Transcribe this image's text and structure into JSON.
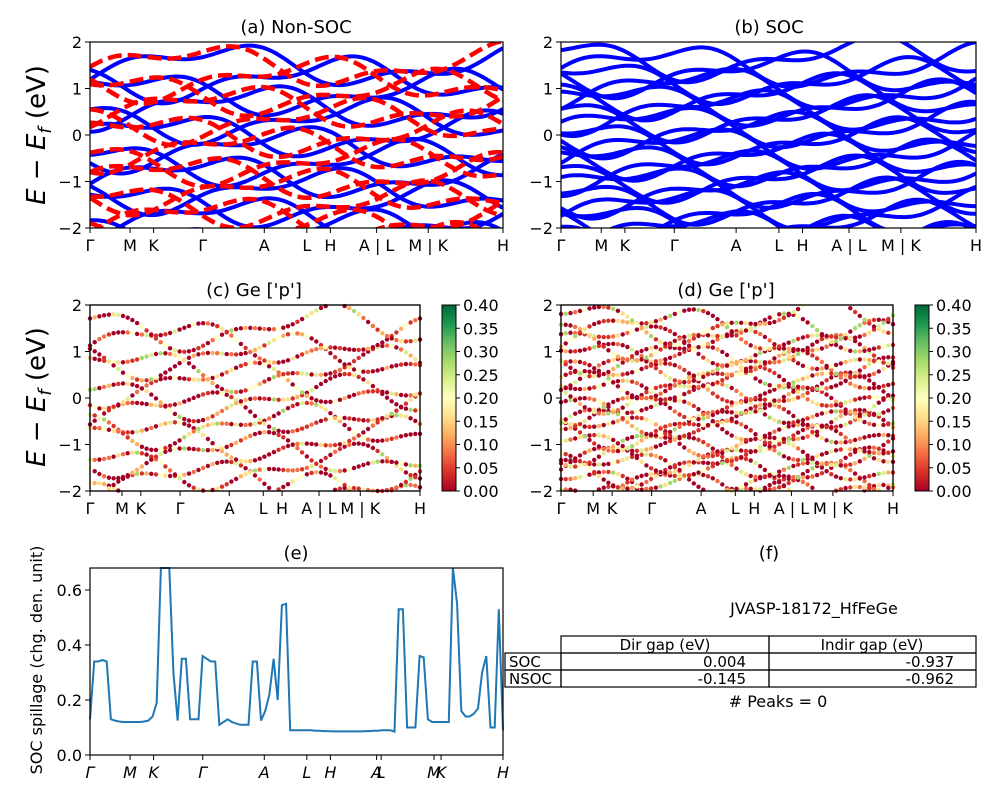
{
  "ylabel_band": "E − E",
  "ylabel_band_sub": "f",
  "ylabel_band_unit": " (eV)",
  "kpath": [
    "Γ",
    "M",
    "K",
    "Γ",
    "A",
    "L",
    "H",
    "A | L",
    "M | K",
    "H"
  ],
  "kpath_italic": [
    "Γ",
    "M",
    "K",
    "Γ",
    "A",
    "L",
    "H",
    "A",
    "L",
    "M",
    "K",
    "H"
  ],
  "colorbar": {
    "ticks": [
      "0.00",
      "0.05",
      "0.10",
      "0.15",
      "0.20",
      "0.25",
      "0.30",
      "0.35",
      "0.40"
    ],
    "min": 0.0,
    "max": 0.4,
    "colors": [
      "#a50026",
      "#d73027",
      "#f46d43",
      "#fdae61",
      "#fee08b",
      "#ffffbf",
      "#d9ef8b",
      "#a6d96a",
      "#66bd63",
      "#1a9850",
      "#006837"
    ]
  },
  "chart_data": [
    {
      "type": "line",
      "title": "(a) Non-SOC",
      "ylim": [
        -2,
        2
      ],
      "yticks": [
        "2",
        "1",
        "0",
        "−1",
        "−2"
      ],
      "series": [
        {
          "style": "solid",
          "color": "#0000ff"
        },
        {
          "style": "dashed",
          "color": "#ff0000"
        }
      ]
    },
    {
      "type": "line",
      "title": "(b) SOC",
      "ylim": [
        -2,
        2
      ],
      "yticks": [
        "2",
        "1",
        "0",
        "−1",
        "−2"
      ],
      "series": [
        {
          "style": "solid",
          "color": "#0000ff"
        }
      ]
    },
    {
      "type": "scatter",
      "title": "(c)  Ge ['p']",
      "ylim": [
        -2,
        2
      ],
      "yticks": [
        "2",
        "1",
        "0",
        "−1",
        "−2"
      ]
    },
    {
      "type": "scatter",
      "title": "(d) Ge ['p']",
      "ylim": [
        -2,
        2
      ],
      "yticks": [
        "2",
        "1",
        "0",
        "−1",
        "−2"
      ]
    },
    {
      "type": "line",
      "title": "(e)",
      "ylabel": "SOC spillage (chg. den. unit)",
      "ylim": [
        0,
        0.68
      ],
      "yticks": [
        "0.6",
        "0.4",
        "0.2",
        "0.0"
      ],
      "x": [
        0,
        1,
        2,
        3,
        4,
        5,
        6,
        7,
        8,
        9,
        10,
        11,
        12,
        13,
        14,
        15,
        16,
        17,
        18,
        19,
        20,
        21,
        22,
        23,
        24,
        25,
        26,
        27,
        28,
        29,
        30,
        31,
        32,
        33,
        34,
        35,
        36,
        37,
        38,
        39,
        40,
        41,
        42,
        43,
        44,
        45,
        46,
        47,
        48,
        49,
        50,
        51,
        52,
        53,
        54,
        55,
        56,
        57,
        58,
        59,
        60,
        61,
        62,
        63,
        64,
        65,
        66,
        67,
        68,
        69,
        70,
        71,
        72,
        73,
        74,
        75,
        76,
        77,
        78,
        79,
        80,
        81,
        82,
        83,
        84,
        85,
        86,
        87,
        88,
        89,
        90,
        91,
        92,
        93,
        94,
        95,
        96,
        97,
        98,
        99
      ],
      "values": [
        0.13,
        0.34,
        0.34,
        0.345,
        0.34,
        0.13,
        0.125,
        0.122,
        0.12,
        0.12,
        0.12,
        0.12,
        0.12,
        0.122,
        0.125,
        0.14,
        0.19,
        0.68,
        0.68,
        0.68,
        0.3,
        0.125,
        0.35,
        0.35,
        0.13,
        0.13,
        0.13,
        0.36,
        0.35,
        0.34,
        0.34,
        0.11,
        0.12,
        0.13,
        0.12,
        0.115,
        0.11,
        0.11,
        0.11,
        0.34,
        0.34,
        0.125,
        0.16,
        0.22,
        0.35,
        0.2,
        0.545,
        0.55,
        0.09,
        0.09,
        0.09,
        0.09,
        0.09,
        0.09,
        0.088,
        0.088,
        0.087,
        0.087,
        0.086,
        0.086,
        0.086,
        0.086,
        0.086,
        0.086,
        0.086,
        0.086,
        0.087,
        0.087,
        0.088,
        0.088,
        0.09,
        0.09,
        0.09,
        0.085,
        0.53,
        0.53,
        0.1,
        0.1,
        0.1,
        0.36,
        0.355,
        0.13,
        0.12,
        0.12,
        0.12,
        0.12,
        0.12,
        0.68,
        0.55,
        0.16,
        0.14,
        0.14,
        0.15,
        0.17,
        0.3,
        0.36,
        0.1,
        0.1,
        0.53,
        0.09
      ],
      "series": [
        {
          "color": "#1f77b4"
        }
      ]
    },
    {
      "type": "table",
      "title": "(f)",
      "caption": "JVASP-18172_HfFeGe",
      "columns": [
        "Dir gap (eV)",
        "Indir gap (eV)"
      ],
      "rows": [
        {
          "label": "SOC",
          "cells": [
            "0.004",
            "-0.937"
          ]
        },
        {
          "label": "NSOC",
          "cells": [
            "-0.145",
            "-0.962"
          ]
        }
      ],
      "footer": "# Peaks = 0"
    }
  ]
}
